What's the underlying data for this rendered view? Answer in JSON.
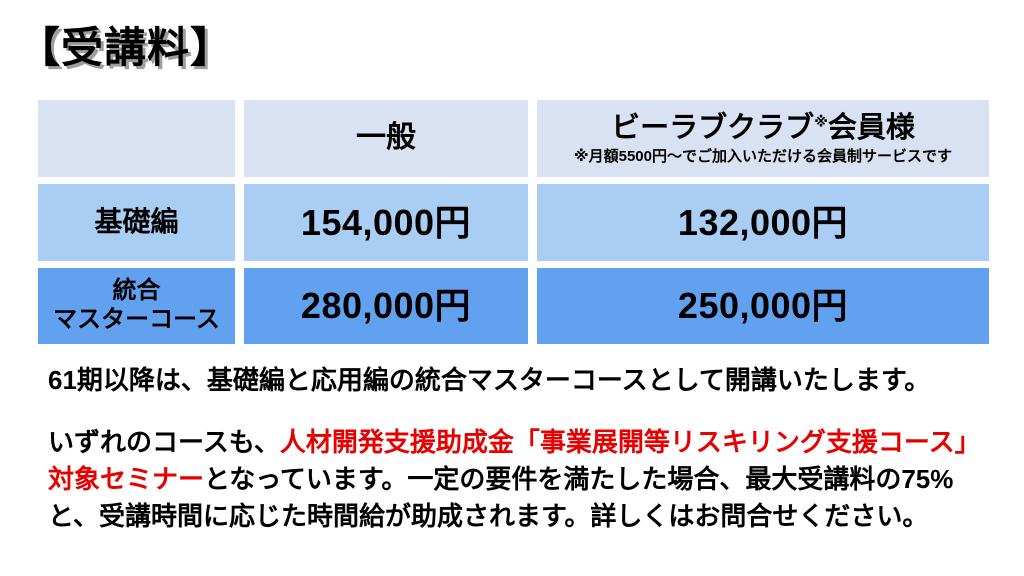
{
  "slide": {
    "title": "【受講料】"
  },
  "pricing_table": {
    "columns": {
      "corner": "",
      "general": "一般",
      "member_main": "ビーラブクラブ",
      "member_marker": "※",
      "member_suffix": "会員様",
      "member_note": "※月額5500円～でご加入いただける会員制サービスです"
    },
    "rows": [
      {
        "label": "基礎編",
        "general": "154,000円",
        "member": "132,000円"
      },
      {
        "label_line1": "統合",
        "label_line2": "マスターコース",
        "general": "280,000円",
        "member": "250,000円"
      }
    ]
  },
  "notes": {
    "para1": "61期以降は、基礎編と応用編の統合マスターコースとして開講いたします。",
    "para2_black1": "いずれのコースも、",
    "para2_red": "人材開発支援助成金「事業展開等リスキリング支援コース」対象セミナー",
    "para2_black2": "となっています。一定の要件を満たした場合、最大受講料の75%と、受講時間に応じた時間給が助成されます。詳しくはお問合せください。"
  },
  "colors": {
    "header_cell_bg": "#d9e2f2",
    "row_basic_bg": "#a9cdf3",
    "row_master_bg": "#62a0f0",
    "highlight_red": "#e60000",
    "title_shadow": "#9e9e9e",
    "text": "#000000"
  }
}
